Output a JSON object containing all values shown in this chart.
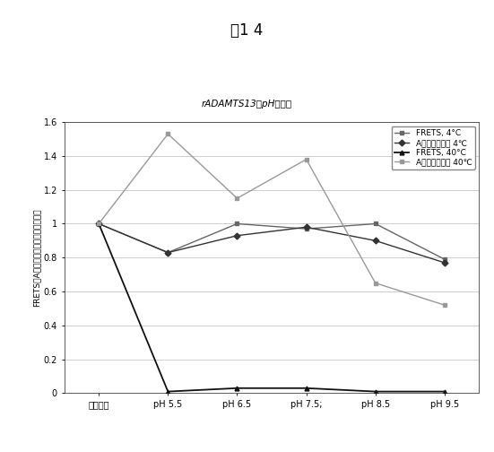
{
  "title_fig": "図1 4",
  "subtitle": "rADAMTS13のpH安定性",
  "ylabel": "FRETS、A－１３活度（開始物質の％）",
  "x_labels": [
    "開始物質",
    "pH 5.5",
    "pH 6.5",
    "pH 7.5;",
    "pH 8.5",
    "pH 9.5"
  ],
  "x_positions": [
    0,
    1,
    2,
    3,
    4,
    5
  ],
  "series": [
    {
      "label": "FRETS, 4°C",
      "color": "#666666",
      "linestyle": "-",
      "marker": "s",
      "markersize": 3.5,
      "linewidth": 1.0,
      "values": [
        1.0,
        0.83,
        1.0,
        0.97,
        1.0,
        0.79
      ]
    },
    {
      "label": "A－１３活度、 4℃",
      "color": "#333333",
      "linestyle": "-",
      "marker": "D",
      "markersize": 3.5,
      "linewidth": 1.0,
      "values": [
        1.0,
        0.83,
        0.93,
        0.98,
        0.9,
        0.77
      ]
    },
    {
      "label": "FRETS, 40°C",
      "color": "#111111",
      "linestyle": "-",
      "marker": "^",
      "markersize": 3.5,
      "linewidth": 1.3,
      "values": [
        1.0,
        0.01,
        0.03,
        0.03,
        0.01,
        0.01
      ]
    },
    {
      "label": "A－１３活度、 40℃",
      "color": "#999999",
      "linestyle": "-",
      "marker": "s",
      "markersize": 3.5,
      "linewidth": 1.0,
      "values": [
        1.0,
        1.53,
        1.15,
        1.38,
        0.65,
        0.52
      ]
    }
  ],
  "ylim": [
    0,
    1.6
  ],
  "yticks": [
    0,
    0.2,
    0.4,
    0.6,
    0.8,
    1.0,
    1.2,
    1.4,
    1.6
  ],
  "background_color": "#ffffff",
  "grid_color": "#bbbbbb",
  "title_fontsize": 12,
  "subtitle_fontsize": 7.5,
  "legend_fontsize": 6.5,
  "axis_fontsize": 6.5,
  "tick_fontsize": 7
}
